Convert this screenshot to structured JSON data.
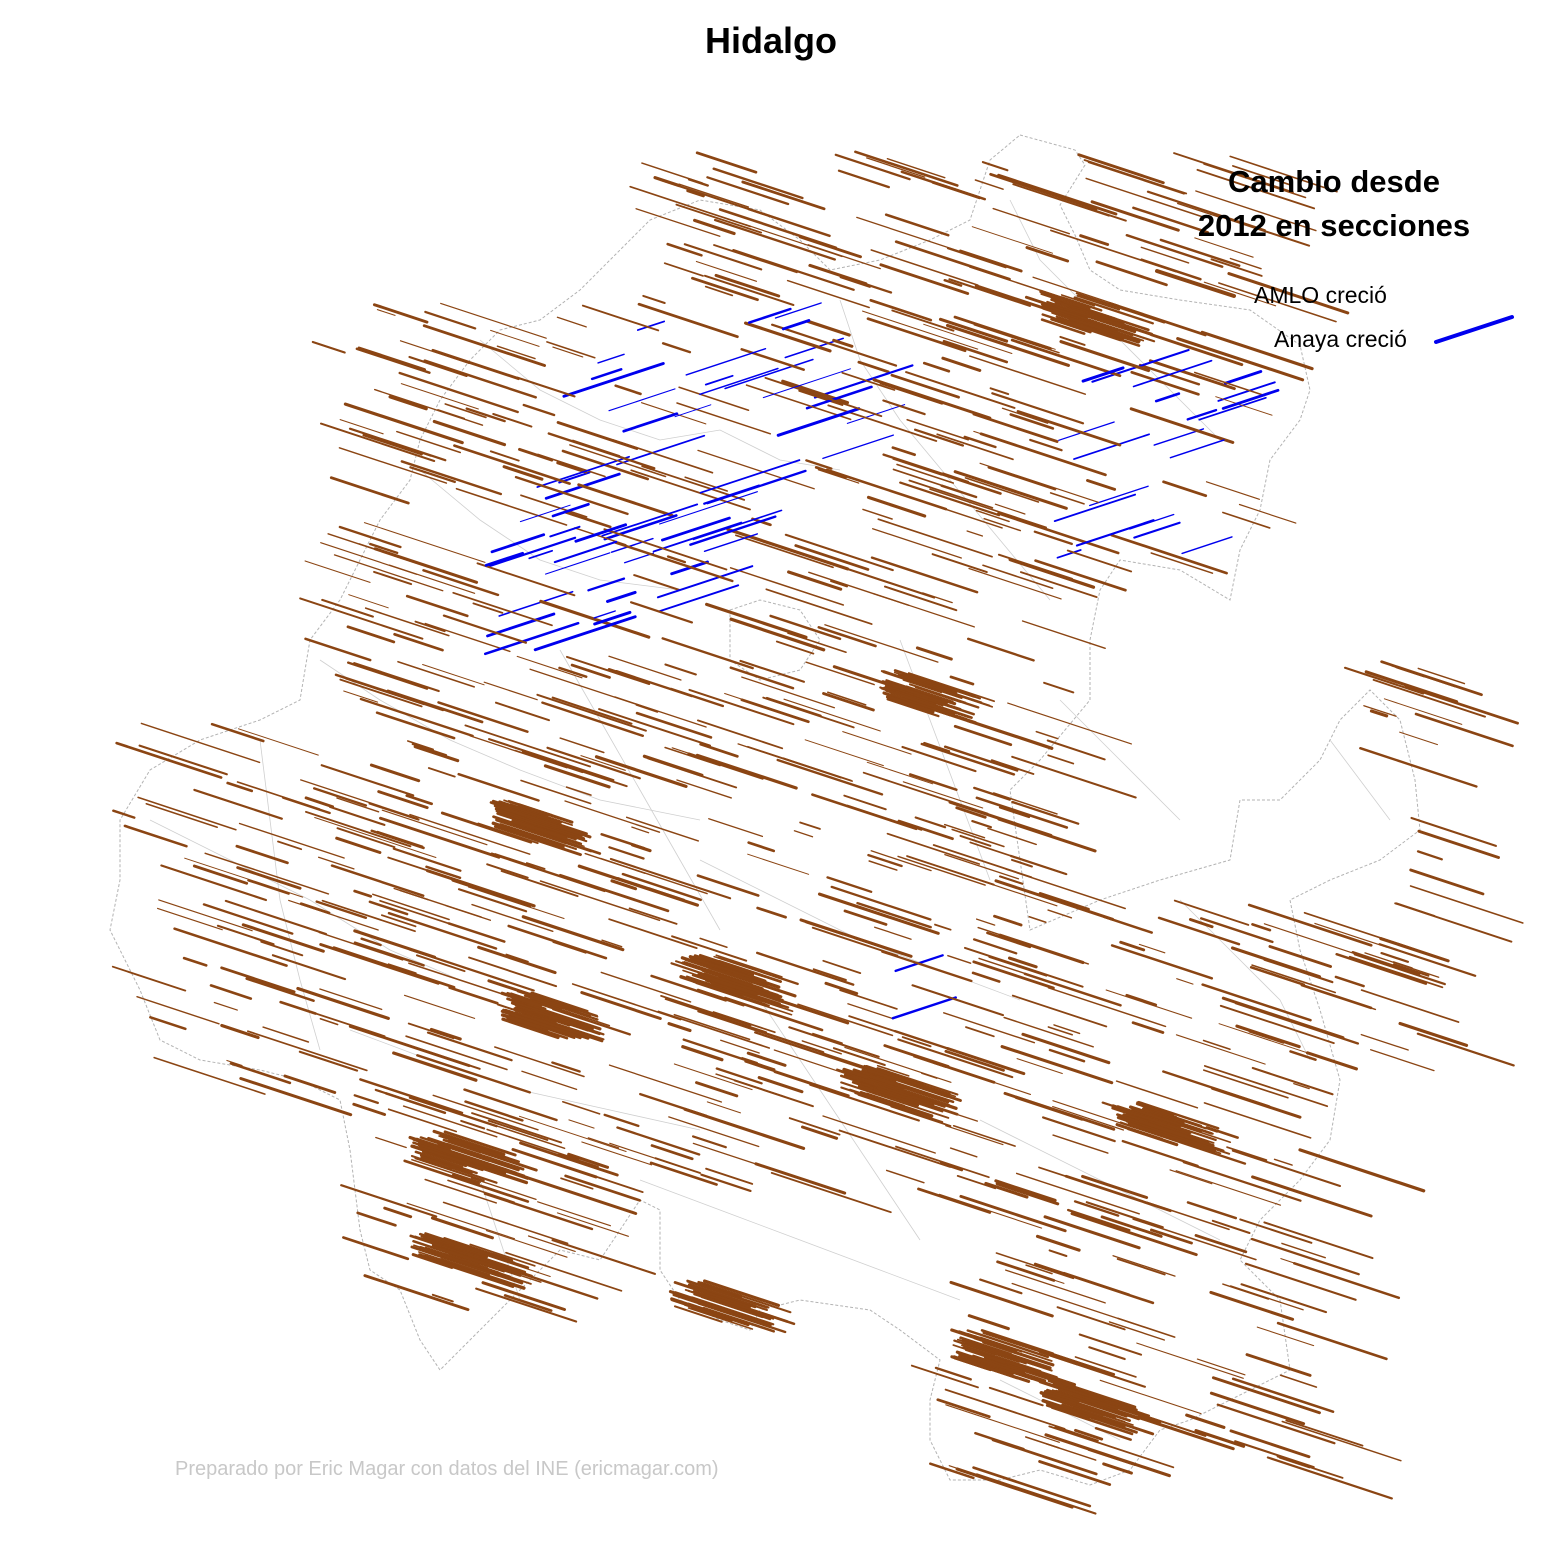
{
  "title": "Hidalgo",
  "legend": {
    "title_line1": "Cambio desde",
    "title_line2": "2012 en secciones",
    "items": [
      {
        "label": "AMLO creció",
        "color": "#8B4513"
      },
      {
        "label": "Anaya creció",
        "color": "#0000EE"
      }
    ]
  },
  "credit": "Preparado por Eric Magar con datos del INE (ericmagar.com)",
  "colors": {
    "amlo": "#8B4513",
    "anaya": "#0000EE",
    "boundary": "#b3b3b3"
  }
}
